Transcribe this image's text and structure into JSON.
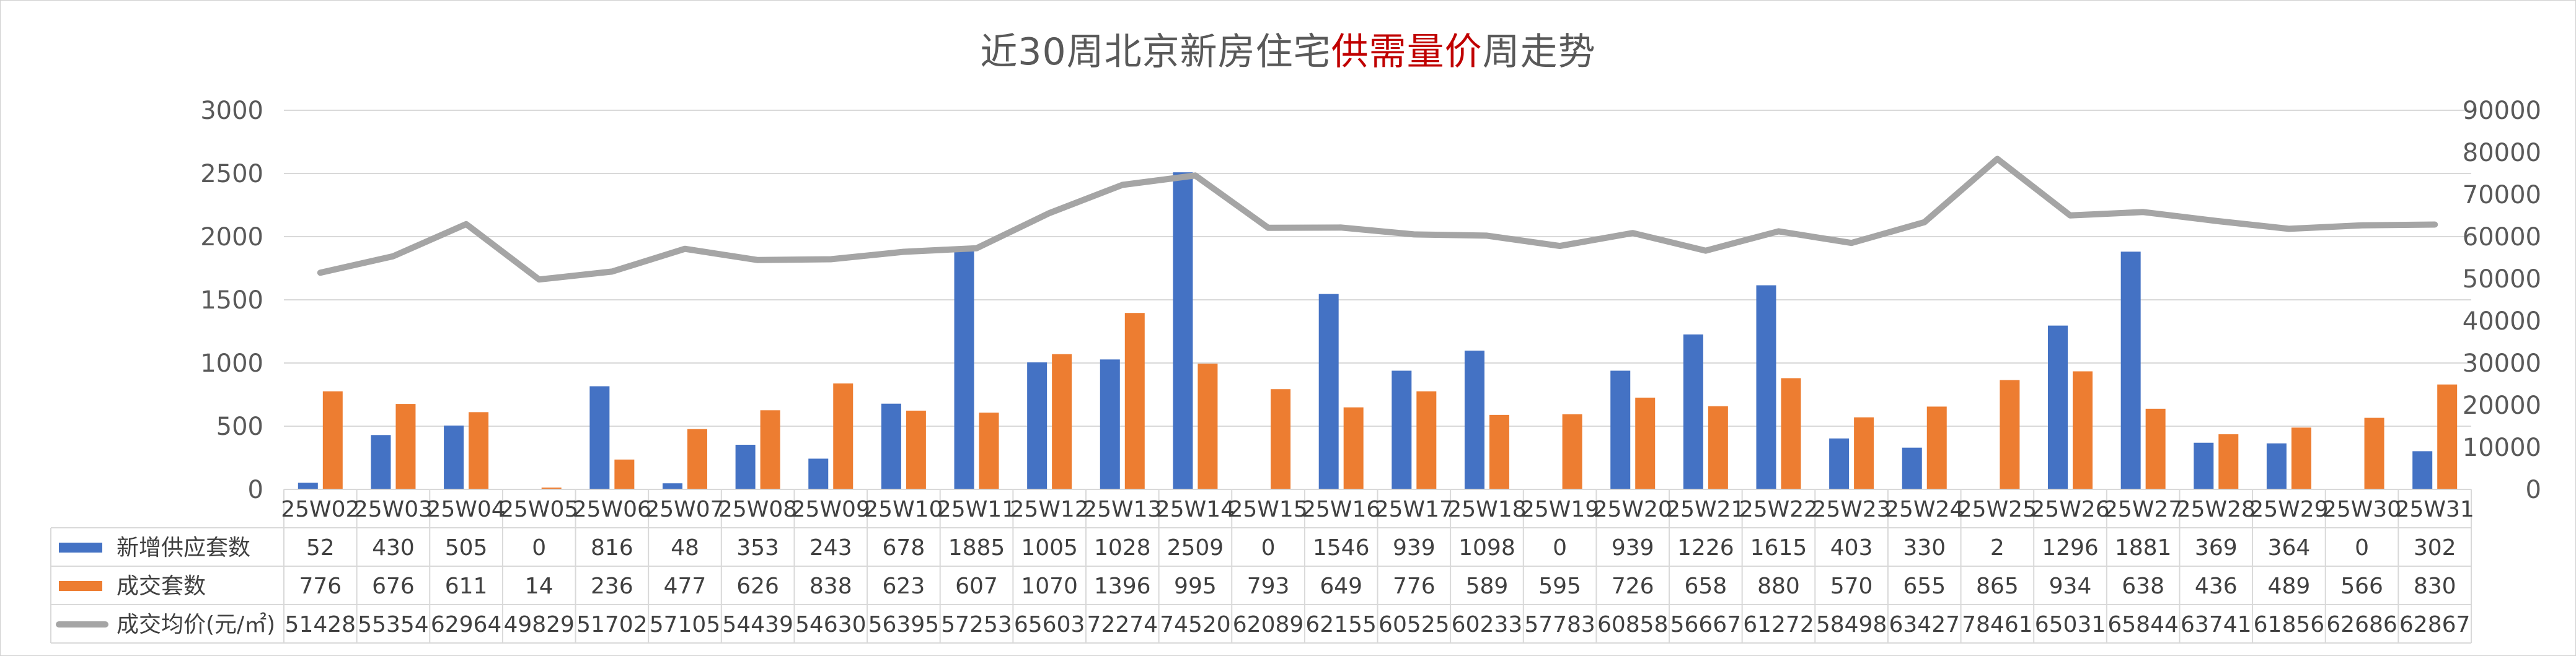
{
  "chart_data": {
    "type": "bar",
    "title_parts": [
      "近30周北京新房住宅",
      "供需量价",
      "周走势"
    ],
    "categories": [
      "25W02",
      "25W03",
      "25W04",
      "25W05",
      "25W06",
      "25W07",
      "25W08",
      "25W09",
      "25W10",
      "25W11",
      "25W12",
      "25W13",
      "25W14",
      "25W15",
      "25W16",
      "25W17",
      "25W18",
      "25W19",
      "25W20",
      "25W21",
      "25W22",
      "25W23",
      "25W24",
      "25W25",
      "25W26",
      "25W27",
      "25W28",
      "25W29",
      "25W30",
      "25W31"
    ],
    "series": [
      {
        "name": "新增供应套数",
        "type": "bar",
        "axis": "left",
        "color": "#4472c4",
        "values": [
          52,
          430,
          505,
          0,
          816,
          48,
          353,
          243,
          678,
          1885,
          1005,
          1028,
          2509,
          0,
          1546,
          939,
          1098,
          0,
          939,
          1226,
          1615,
          403,
          330,
          2,
          1296,
          1881,
          369,
          364,
          0,
          302
        ]
      },
      {
        "name": "成交套数",
        "type": "bar",
        "axis": "left",
        "color": "#ed7d31",
        "values": [
          776,
          676,
          611,
          14,
          236,
          477,
          626,
          838,
          623,
          607,
          1070,
          1396,
          995,
          793,
          649,
          776,
          589,
          595,
          726,
          658,
          880,
          570,
          655,
          865,
          934,
          638,
          436,
          489,
          566,
          830
        ]
      },
      {
        "name": "成交均价(元/㎡)",
        "type": "line",
        "axis": "right",
        "color": "#a5a5a5",
        "values": [
          51428,
          55354,
          62964,
          49829,
          51702,
          57105,
          54439,
          54630,
          56395,
          57253,
          65603,
          72274,
          74520,
          62089,
          62155,
          60525,
          60233,
          57783,
          60858,
          56667,
          61272,
          58498,
          63427,
          78461,
          65031,
          65844,
          63741,
          61856,
          62686,
          62867
        ]
      }
    ],
    "y_left": {
      "min": 0,
      "max": 3000,
      "ticks": [
        "0",
        "500",
        "1000",
        "1500",
        "2000",
        "2500",
        "3000"
      ]
    },
    "y_right": {
      "min": 0,
      "max": 90000,
      "ticks": [
        "0",
        "10000",
        "20000",
        "30000",
        "40000",
        "50000",
        "60000",
        "70000",
        "80000",
        "90000"
      ]
    },
    "grid": true,
    "legend": "data-table"
  }
}
